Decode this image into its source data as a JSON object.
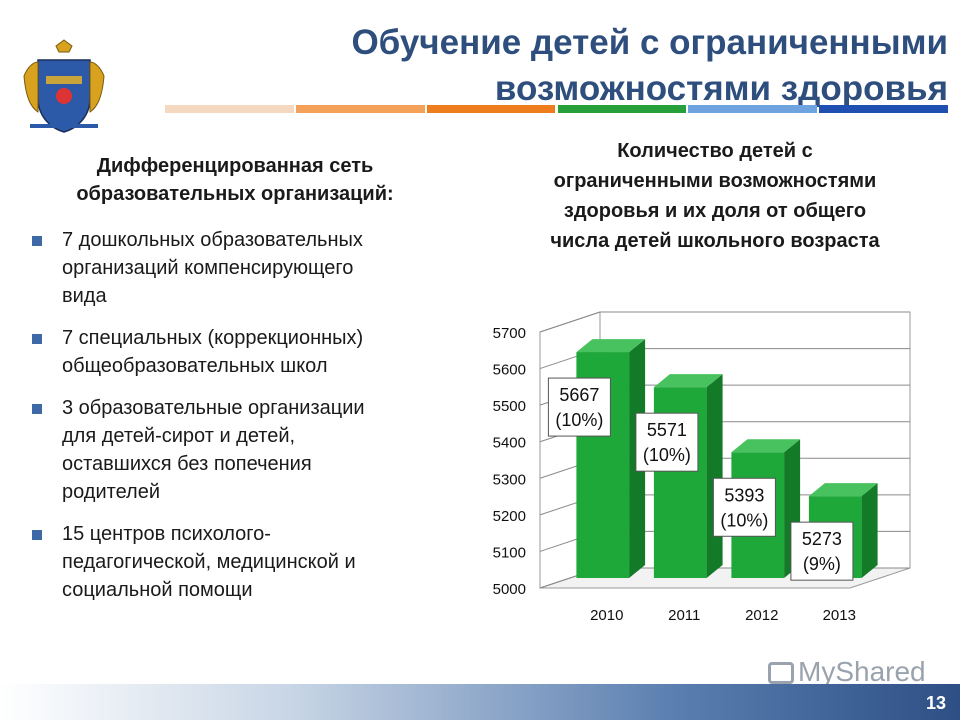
{
  "title": {
    "line1": "Обучение детей с ограниченными",
    "line2": "возможностями здоровья"
  },
  "stripe_colors": [
    "#f5d8c0",
    "#f4a15a",
    "#ee7d1d",
    "#27a03c",
    "#6fa3e0",
    "#1f4fb0"
  ],
  "left_panel": {
    "heading_line1": "Дифференцированная сеть",
    "heading_line2": "образовательных организаций:",
    "items": [
      {
        "lines": [
          "7 дошкольных образовательных",
          "организаций компенсирующего",
          "вида"
        ]
      },
      {
        "lines": [
          "7 специальных (коррекционных)",
          "общеобразовательных школ"
        ]
      },
      {
        "lines": [
          "3 образовательные организации",
          "для детей-сирот и детей,",
          "оставшихся без попечения",
          "родителей"
        ]
      },
      {
        "lines": [
          "15 центров психолого-",
          "педагогической, медицинской и",
          "социальной помощи"
        ]
      }
    ]
  },
  "chart_data": {
    "type": "bar",
    "title_lines": [
      "Количество детей с",
      "ограниченными возможностями",
      "здоровья и их доля от общего",
      "числа детей школьного возраста"
    ],
    "categories": [
      "2010",
      "2011",
      "2012",
      "2013"
    ],
    "values": [
      5667,
      5571,
      5393,
      5273
    ],
    "value_labels": [
      "5667",
      "5571",
      "5393",
      "5273"
    ],
    "share_labels": [
      "(10%)",
      "(10%)",
      "(10%)",
      "(9%)"
    ],
    "ylim": [
      5000,
      5700
    ],
    "yticks": [
      "5000",
      "5100",
      "5200",
      "5300",
      "5400",
      "5500",
      "5600",
      "5700"
    ],
    "grid": true,
    "bar_color": "#1fa83a"
  },
  "footer": {
    "watermark": "MyShared",
    "page_number": "13"
  }
}
